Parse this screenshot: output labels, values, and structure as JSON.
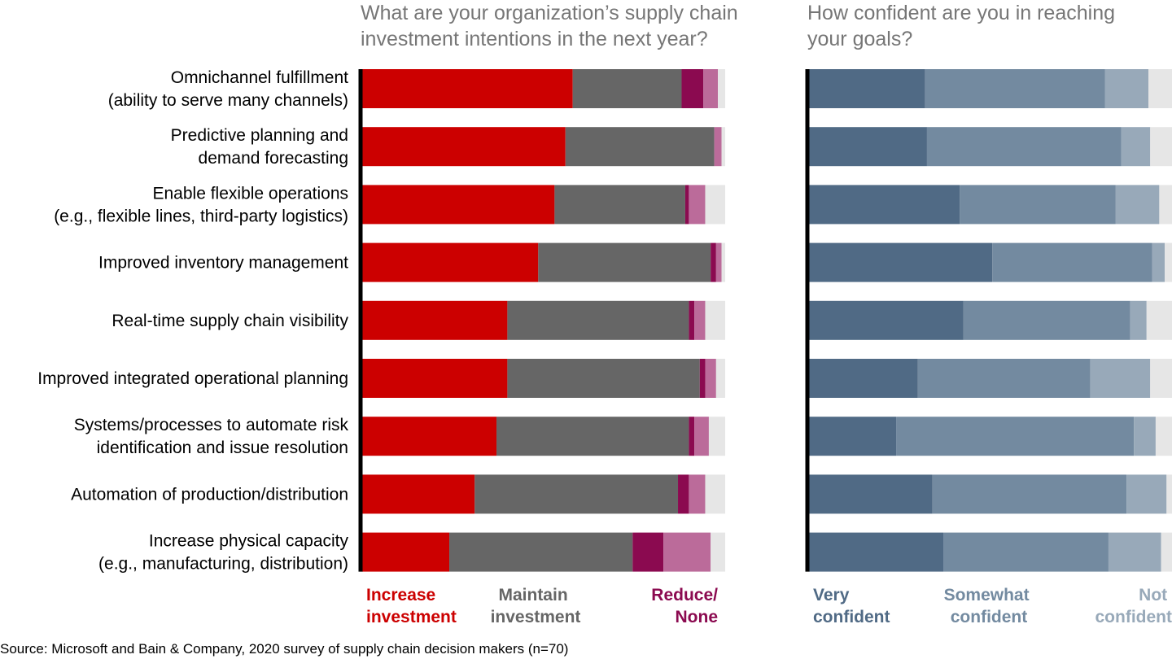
{
  "chart_data": [
    {
      "type": "bar",
      "orientation": "horizontal",
      "stacked": true,
      "title": [
        "What are your organization’s supply chain",
        "investment intentions in the next year?"
      ],
      "categories": [
        [
          "Omnichannel fulfillment",
          "(ability to serve many channels)"
        ],
        [
          "Predictive planning and",
          "demand forecasting"
        ],
        [
          "Enable flexible operations",
          "(e.g., flexible lines, third-party logistics)"
        ],
        [
          "Improved inventory management"
        ],
        [
          "Real-time supply chain visibility"
        ],
        [
          "Improved integrated operational planning"
        ],
        [
          "Systems/processes to automate risk",
          "identification and issue resolution"
        ],
        [
          "Automation of production/distribution"
        ],
        [
          "Increase physical capacity",
          "(e.g., manufacturing, distribution)"
        ]
      ],
      "xlim": [
        0,
        100
      ],
      "series": [
        {
          "name": "Increase investment",
          "color": "#cc0000",
          "values": [
            58,
            56,
            53,
            48.5,
            40,
            40,
            37,
            31,
            24
          ]
        },
        {
          "name": "Maintain investment",
          "color": "#666666",
          "values": [
            30,
            41,
            36,
            47.5,
            50,
            53,
            53,
            56,
            50.5
          ]
        },
        {
          "name": "Reduce/",
          "color": "#8b0a50",
          "values": [
            6,
            0,
            1,
            1.5,
            1.5,
            1.5,
            1.5,
            3,
            8.5
          ]
        },
        {
          "name": "None",
          "color": "#bb6b9a",
          "values": [
            4,
            2,
            4.5,
            1.5,
            3,
            3,
            4,
            4.5,
            13
          ]
        },
        {
          "color": "#e6e6e6",
          "values": [
            2,
            1,
            5.5,
            1,
            5.5,
            2.5,
            4.5,
            5.5,
            4
          ]
        }
      ]
    },
    {
      "type": "bar",
      "orientation": "horizontal",
      "stacked": true,
      "title": [
        "How confident are you in reaching",
        "your goals?"
      ],
      "xlim": [
        0,
        100
      ],
      "series": [
        {
          "name": "Very confident",
          "color": "#506a85",
          "values": [
            32,
            32.5,
            41.5,
            50.5,
            42.5,
            30,
            24,
            34,
            37
          ]
        },
        {
          "name": "Somewhat confident",
          "color": "#738aa0",
          "values": [
            49.5,
            53.5,
            43,
            44,
            46,
            47.5,
            65.5,
            53.5,
            45.5
          ]
        },
        {
          "name": "Not confident",
          "color": "#98a9b9",
          "values": [
            12,
            8,
            12,
            3.5,
            4.5,
            16.5,
            6,
            11,
            14.5
          ]
        },
        {
          "color": "#e6e6e6",
          "values": [
            6.5,
            6,
            3.5,
            2,
            7,
            6,
            4.5,
            1.5,
            3
          ]
        }
      ]
    }
  ],
  "source": "Source: Microsoft and Bain & Company, 2020 survey of supply chain decision makers (n=70)"
}
